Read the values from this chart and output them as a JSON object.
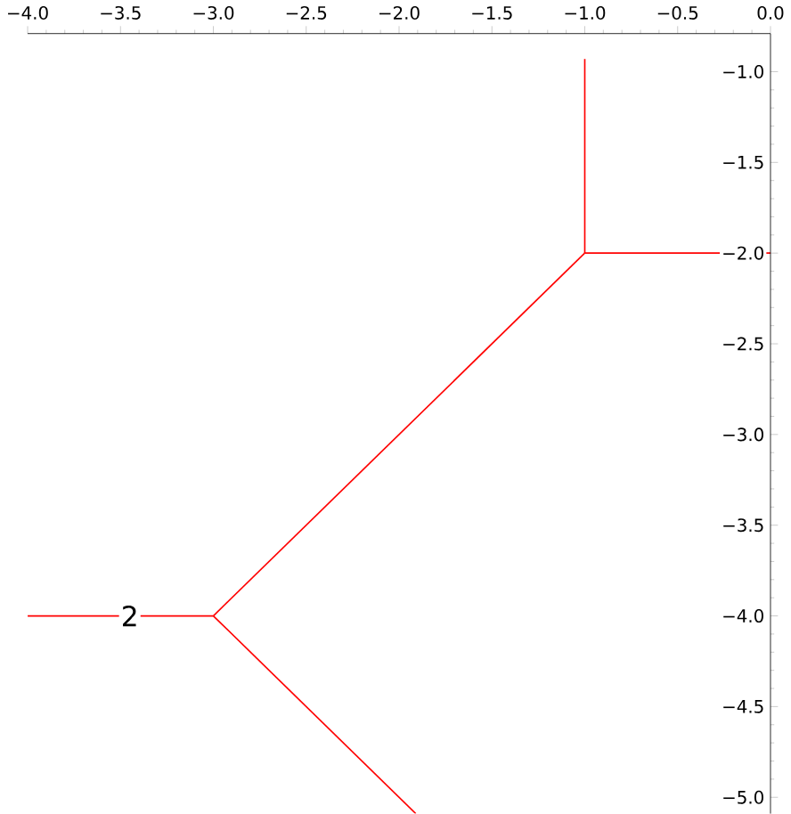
{
  "chart_data": {
    "type": "line",
    "xlim": [
      -4.0,
      0.0
    ],
    "ylim": [
      -5.09,
      -0.79
    ],
    "xticks": [
      {
        "value": -4.0,
        "label": "−4.0"
      },
      {
        "value": -3.5,
        "label": "−3.5"
      },
      {
        "value": -3.0,
        "label": "−3.0"
      },
      {
        "value": -2.5,
        "label": "−2.5"
      },
      {
        "value": -2.0,
        "label": "−2.0"
      },
      {
        "value": -1.5,
        "label": "−1.5"
      },
      {
        "value": -1.0,
        "label": "−1.0"
      },
      {
        "value": -0.5,
        "label": "−0.5"
      },
      {
        "value": 0.0,
        "label": "0.0"
      }
    ],
    "yticks": [
      {
        "value": -1.0,
        "label": "−1.0"
      },
      {
        "value": -1.5,
        "label": "−1.5"
      },
      {
        "value": -2.0,
        "label": "−2.0"
      },
      {
        "value": -2.5,
        "label": "−2.5"
      },
      {
        "value": -3.0,
        "label": "−3.0"
      },
      {
        "value": -3.5,
        "label": "−3.5"
      },
      {
        "value": -4.0,
        "label": "−4.0"
      },
      {
        "value": -4.5,
        "label": "−4.5"
      },
      {
        "value": -5.0,
        "label": "−5.0"
      }
    ],
    "series": [
      {
        "color": "#ff0000",
        "x": [
          -1.0,
          -1.0
        ],
        "values": [
          -0.93,
          -2.0
        ]
      },
      {
        "color": "#ff0000",
        "x": [
          -1.0,
          0.0
        ],
        "values": [
          -2.0,
          -2.0
        ]
      },
      {
        "color": "#ff0000",
        "x": [
          -1.0,
          -3.0
        ],
        "values": [
          -2.0,
          -4.0
        ]
      },
      {
        "color": "#ff0000",
        "x": [
          -3.0,
          -4.0
        ],
        "values": [
          -4.0,
          -4.0
        ]
      },
      {
        "color": "#ff0000",
        "x": [
          -3.0,
          -1.91
        ],
        "values": [
          -4.0,
          -5.09
        ]
      }
    ],
    "annotations": [
      {
        "text": "2",
        "x": -3.45,
        "y": -4.0
      }
    ]
  }
}
